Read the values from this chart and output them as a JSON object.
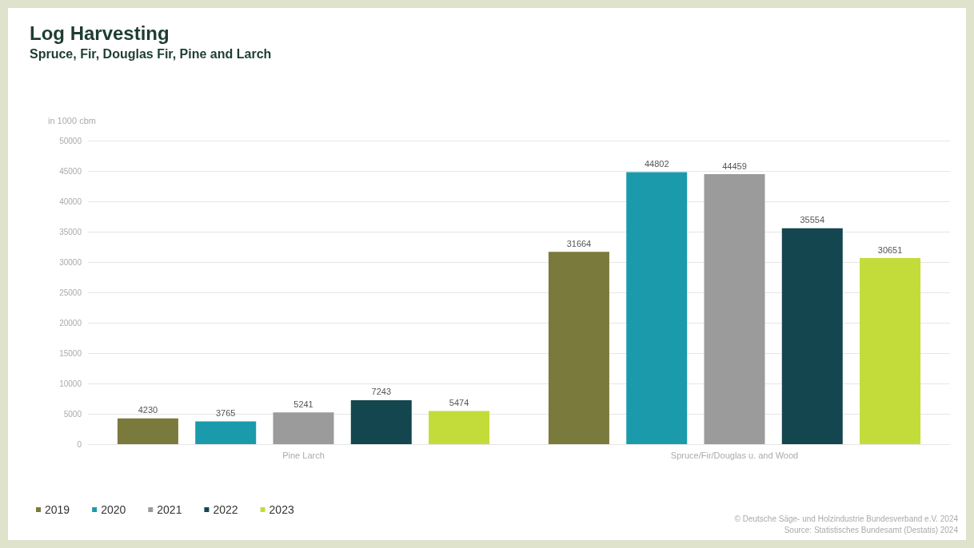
{
  "chart_data": {
    "type": "bar",
    "title": "Log Harvesting",
    "subtitle": "Spruce, Fir, Douglas Fir, Pine and Larch",
    "ylabel": "in 1000 cbm",
    "categories": [
      "Pine Larch",
      "Spruce/Fir/Douglas u. and Wood"
    ],
    "series": [
      {
        "name": "2019",
        "color": "#7a7a3c",
        "values": [
          4230,
          31664
        ]
      },
      {
        "name": "2020",
        "color": "#1a9aab",
        "values": [
          3765,
          44802
        ]
      },
      {
        "name": "2021",
        "color": "#9b9b9b",
        "values": [
          5241,
          44459
        ]
      },
      {
        "name": "2022",
        "color": "#14464f",
        "values": [
          7243,
          35554
        ]
      },
      {
        "name": "2023",
        "color": "#c3dc3a",
        "values": [
          5474,
          30651
        ]
      }
    ],
    "ylim": [
      0,
      50000
    ],
    "yticks": [
      0,
      5000,
      10000,
      15000,
      20000,
      25000,
      30000,
      35000,
      40000,
      45000,
      50000
    ],
    "grid": "y",
    "legend": "bottom left",
    "data_labels": true,
    "annotations": [
      "© Deutsche Säge- und Holzindustrie Bundesverband e.V. 2024",
      "Source: Statistisches Bundesamt (Destatis) 2024"
    ]
  }
}
